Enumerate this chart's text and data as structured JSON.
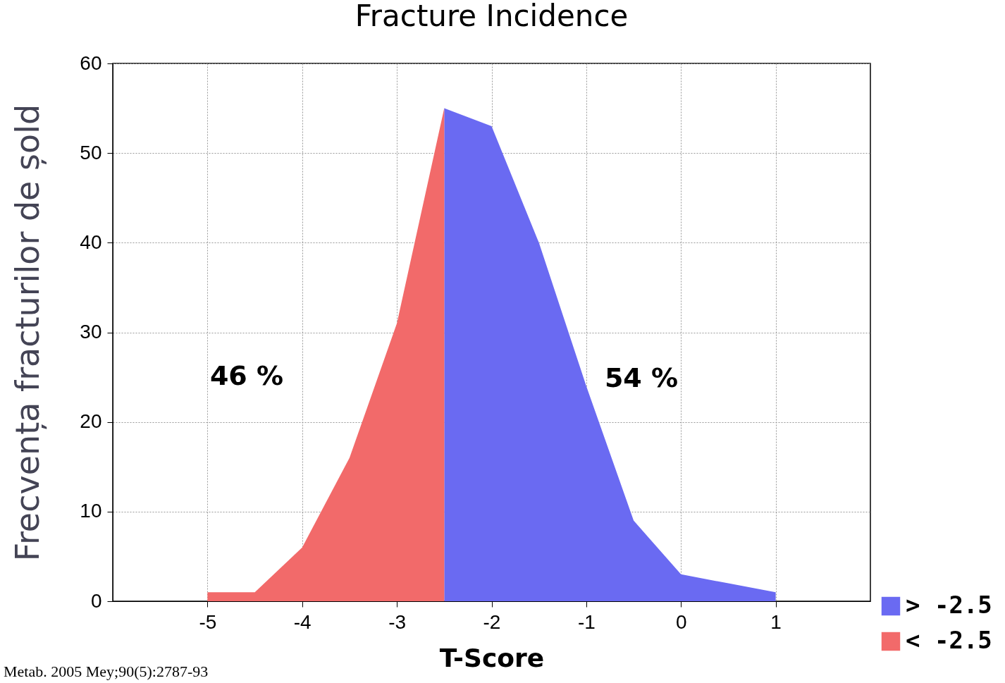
{
  "chart_data": {
    "type": "area",
    "title": "Fracture Incidence",
    "xlabel": "T-Score",
    "ylabel": "Frecvența fracturilor de șold",
    "series": [
      {
        "name": "> -2.5",
        "color": "#6a6af2",
        "x": [
          -2.5,
          -2,
          -1.5,
          -1,
          -0.5,
          0,
          0.5,
          1
        ],
        "values": [
          55,
          53,
          40,
          24,
          9,
          3,
          2,
          1
        ]
      },
      {
        "name": "< -2.5",
        "color": "#f26a6a",
        "x": [
          -5,
          -4.5,
          -4,
          -3.5,
          -3,
          -2.5
        ],
        "values": [
          1,
          1,
          6,
          16,
          31,
          55
        ]
      }
    ],
    "annotations": [
      "46 %",
      "54 %",
      "Metab. 2005 Mey;90(5):2787-93"
    ],
    "xlim": [
      -6,
      2
    ],
    "xticks": [
      -5,
      -4,
      -3,
      -2,
      -1,
      0,
      1
    ],
    "ylim": [
      0,
      60
    ],
    "yticks": [
      0,
      10,
      20,
      30,
      40,
      50,
      60
    ],
    "grid": true,
    "legend": "bottom right"
  }
}
